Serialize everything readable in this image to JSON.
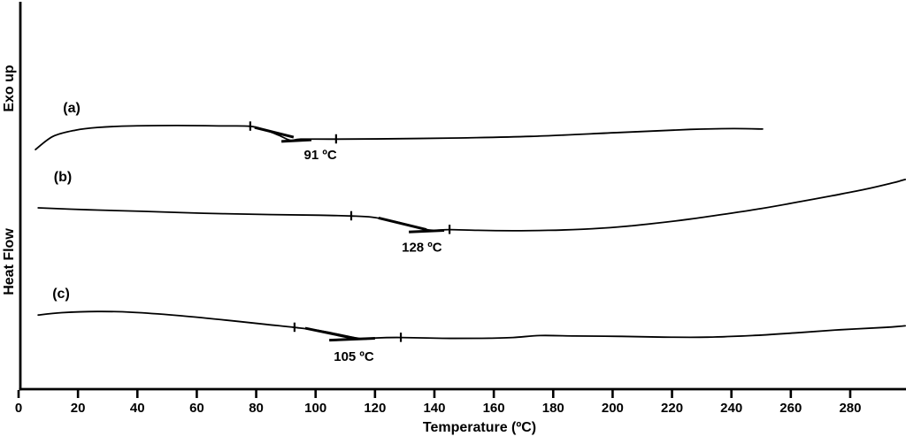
{
  "axes": {
    "x_label": "Temperature (ºC)",
    "y_label": "Heat Flow",
    "orientation_label": "Exo up"
  },
  "chart_data": {
    "type": "line",
    "xlabel": "Temperature (ºC)",
    "ylabel": "Heat Flow",
    "exo_direction": "Exo up",
    "xlim": [
      0,
      299
    ],
    "ylim_au": [
      0,
      100
    ],
    "x_ticks": [
      0,
      20,
      40,
      60,
      80,
      100,
      120,
      140,
      160,
      180,
      200,
      220,
      240,
      260,
      280
    ],
    "grid": false,
    "line_color": "#000000",
    "background": "#ffffff",
    "series": [
      {
        "name": "(a)",
        "transition_label": "91 ºC",
        "transition_c": 91,
        "label_pos": [
          17.9,
          72.7
        ],
        "annotation_pos": [
          101.6,
          60.4
        ],
        "onset_tick": [
          78.0,
          67.7
        ],
        "end_tick": [
          106.9,
          64.4
        ],
        "tangents": [
          [
            [
              79.5,
              67.4
            ],
            [
              92.6,
              64.9
            ]
          ],
          [
            [
              88.5,
              63.8
            ],
            [
              98.6,
              64.2
            ]
          ]
        ],
        "points": [
          [
            5.7,
            61.7
          ],
          [
            11.6,
            65.1
          ],
          [
            19.1,
            66.7
          ],
          [
            26.5,
            67.4
          ],
          [
            38.4,
            67.8
          ],
          [
            53.3,
            67.9
          ],
          [
            68.2,
            67.8
          ],
          [
            78.0,
            67.7
          ],
          [
            83.1,
            66.7
          ],
          [
            87.6,
            65.4
          ],
          [
            91.5,
            64.1
          ],
          [
            95.0,
            64.4
          ],
          [
            106.9,
            64.4
          ],
          [
            127.8,
            64.5
          ],
          [
            148.6,
            64.7
          ],
          [
            172.5,
            65.1
          ],
          [
            202.3,
            66.1
          ],
          [
            226.1,
            66.9
          ],
          [
            241.0,
            67.1
          ],
          [
            250.5,
            67.0
          ]
        ]
      },
      {
        "name": "(b)",
        "transition_label": "128 ºC",
        "transition_c": 128,
        "label_pos": [
          14.9,
          54.9
        ],
        "annotation_pos": [
          135.8,
          36.6
        ],
        "onset_tick": [
          112.0,
          44.6
        ],
        "end_tick": [
          145.1,
          41.1
        ],
        "tangents": [
          [
            [
              121.2,
              44.1
            ],
            [
              137.3,
              41.1
            ]
          ],
          [
            [
              131.4,
              40.5
            ],
            [
              143.3,
              40.9
            ]
          ]
        ],
        "points": [
          [
            6.6,
            46.7
          ],
          [
            23.5,
            46.2
          ],
          [
            41.4,
            45.8
          ],
          [
            62.3,
            45.3
          ],
          [
            83.1,
            45.0
          ],
          [
            101.0,
            44.8
          ],
          [
            112.0,
            44.6
          ],
          [
            118.9,
            44.3
          ],
          [
            124.8,
            43.5
          ],
          [
            130.8,
            42.4
          ],
          [
            136.1,
            41.3
          ],
          [
            139.7,
            40.9
          ],
          [
            145.1,
            41.1
          ],
          [
            154.6,
            40.9
          ],
          [
            166.5,
            40.8
          ],
          [
            178.4,
            40.9
          ],
          [
            190.3,
            41.2
          ],
          [
            202.3,
            41.8
          ],
          [
            214.2,
            42.7
          ],
          [
            226.1,
            43.8
          ],
          [
            238.0,
            45.1
          ],
          [
            249.9,
            46.5
          ],
          [
            261.8,
            48.1
          ],
          [
            273.8,
            49.8
          ],
          [
            285.7,
            51.6
          ],
          [
            294.6,
            53.2
          ],
          [
            298.5,
            54.0
          ]
        ]
      },
      {
        "name": "(c)",
        "transition_label": "105 ºC",
        "transition_c": 105,
        "label_pos": [
          14.3,
          24.8
        ],
        "annotation_pos": [
          112.9,
          8.4
        ],
        "onset_tick": [
          92.9,
          15.9
        ],
        "end_tick": [
          128.7,
          13.3
        ],
        "tangents": [
          [
            [
              96.5,
              15.7
            ],
            [
              112.9,
              13.1
            ]
          ],
          [
            [
              104.6,
              12.6
            ],
            [
              120.0,
              13.1
            ]
          ]
        ],
        "points": [
          [
            6.6,
            19.1
          ],
          [
            14.6,
            19.7
          ],
          [
            26.5,
            20.0
          ],
          [
            38.4,
            19.8
          ],
          [
            53.3,
            19.0
          ],
          [
            68.2,
            17.9
          ],
          [
            83.1,
            16.7
          ],
          [
            92.9,
            15.9
          ],
          [
            101.0,
            15.1
          ],
          [
            108.4,
            14.0
          ],
          [
            112.9,
            13.3
          ],
          [
            116.5,
            12.9
          ],
          [
            120.3,
            13.2
          ],
          [
            128.7,
            13.3
          ],
          [
            142.7,
            13.1
          ],
          [
            156.1,
            13.1
          ],
          [
            166.5,
            13.3
          ],
          [
            175.5,
            13.8
          ],
          [
            187.4,
            13.7
          ],
          [
            202.3,
            13.6
          ],
          [
            217.2,
            13.4
          ],
          [
            232.1,
            13.4
          ],
          [
            247.0,
            13.8
          ],
          [
            261.8,
            14.5
          ],
          [
            276.7,
            15.3
          ],
          [
            291.6,
            15.9
          ],
          [
            298.5,
            16.3
          ]
        ]
      }
    ]
  }
}
